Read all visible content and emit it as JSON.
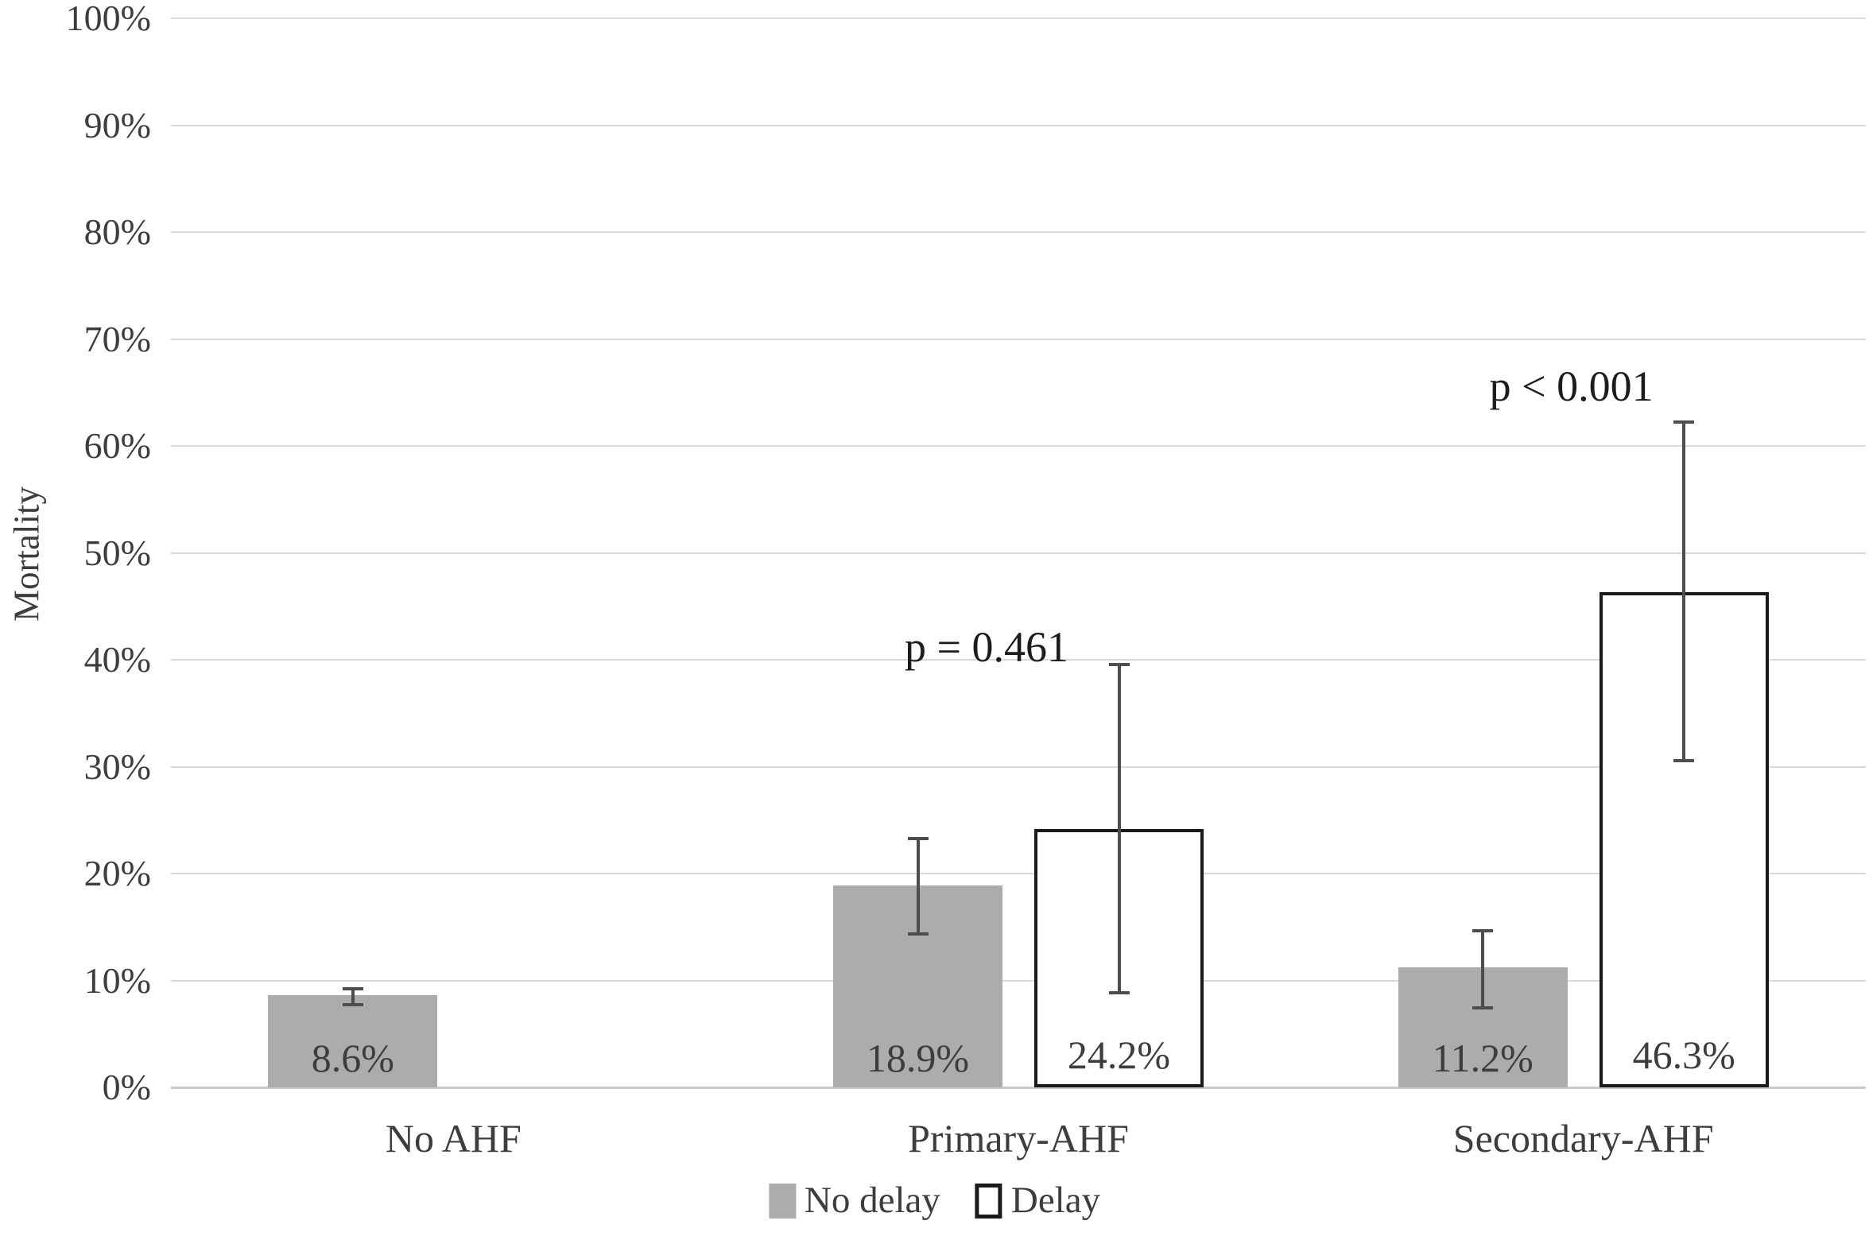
{
  "chart_data": {
    "type": "bar",
    "title": "",
    "ylabel": "Mortality",
    "xlabel": "",
    "y_axis": {
      "min": 0,
      "max": 100,
      "step": 10,
      "ticks": [
        "0%",
        "10%",
        "20%",
        "30%",
        "40%",
        "50%",
        "60%",
        "70%",
        "80%",
        "90%",
        "100%"
      ],
      "grid": true
    },
    "categories": [
      "No AHF",
      "Primary-AHF",
      "Secondary-AHF"
    ],
    "series": [
      {
        "name": "No delay",
        "style": "filled",
        "fill": "#acacac",
        "values": [
          8.6,
          18.9,
          11.2
        ],
        "data_labels": [
          "8.6%",
          "18.9%",
          "11.2%"
        ],
        "error_bars": [
          {
            "low": 7.6,
            "high": 9.4
          },
          {
            "low": 14.2,
            "high": 23.4
          },
          {
            "low": 7.3,
            "high": 14.8
          }
        ]
      },
      {
        "name": "Delay",
        "style": "outlined",
        "fill": "#ffffff",
        "values": [
          null,
          24.2,
          46.3
        ],
        "data_labels": [
          null,
          "24.2%",
          "46.3%"
        ],
        "error_bars": [
          null,
          {
            "low": 8.7,
            "high": 39.7
          },
          {
            "low": 30.4,
            "high": 62.4
          }
        ]
      }
    ],
    "annotations": [
      {
        "text": "p = 0.461",
        "category_index": 1,
        "y_percent": 41.2,
        "dx": -40
      },
      {
        "text": "p < 0.001",
        "category_index": 2,
        "y_percent": 65.6,
        "dx": -15
      }
    ],
    "legend": {
      "position": "bottom-center",
      "entries": [
        {
          "label": "No delay",
          "swatch_fill": "#acacac",
          "outlined": false
        },
        {
          "label": "Delay",
          "swatch_fill": "#ffffff",
          "outlined": true
        }
      ]
    },
    "colors": {
      "grid": "#d9d9d9",
      "axis": "#c9c9c9",
      "error": "#4d4d4d",
      "text": "#3d3d3d",
      "bar_outline": "#1a1a1a"
    }
  }
}
